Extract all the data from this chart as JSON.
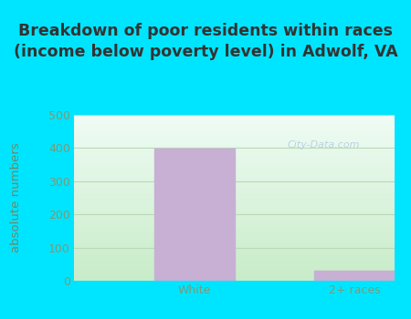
{
  "categories": [
    "White",
    "2+ races"
  ],
  "values": [
    399,
    30
  ],
  "bar_color": "#c8afd4",
  "title": "Breakdown of poor residents within races\n(income below poverty level) in Adwolf, VA",
  "ylabel": "absolute numbers",
  "ylim": [
    0,
    500
  ],
  "yticks": [
    0,
    100,
    200,
    300,
    400,
    500
  ],
  "background_outer": "#00e5ff",
  "background_inner_bottom": "#c8ecc8",
  "background_inner_top": "#eaf7f0",
  "title_fontsize": 12.5,
  "label_fontsize": 9.5,
  "tick_fontsize": 9,
  "bar_width": 0.5,
  "watermark": "City-Data.com",
  "grid_color": "#b8d8b8",
  "tick_color": "#7a9a7a",
  "ylabel_color": "#6a8a6a"
}
